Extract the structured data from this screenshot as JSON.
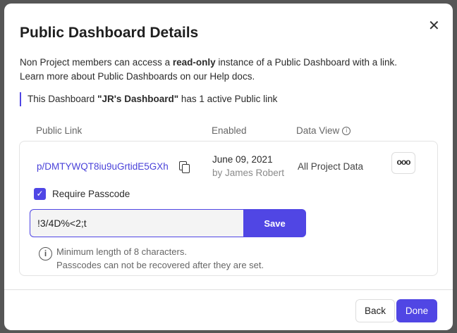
{
  "dialog": {
    "title": "Public Dashboard Details",
    "close_icon": "close-icon"
  },
  "intro": {
    "part1": "Non Project members can access a ",
    "bold": "read-only",
    "part2": " instance of a Public Dashboard with a link.",
    "line2": "Learn more about Public Dashboards on our Help docs."
  },
  "note": {
    "part1": "This Dashboard ",
    "name": "\"JR's Dashboard\"",
    "part2": " has 1 active Public link"
  },
  "table": {
    "headers": {
      "link": "Public Link",
      "enabled": "Enabled",
      "data_view": "Data View"
    },
    "row": {
      "link": "p/DMTYWQT8iu9uGrtidE5GXh",
      "date": "June 09, 2021",
      "by": "by James Robert",
      "data_view": "All Project Data",
      "more": "ooo"
    }
  },
  "passcode": {
    "checkbox_label": "Require Passcode",
    "checked": true,
    "value": "!3/4D%<2;t",
    "save": "Save",
    "hint1": "Minimum length of 8 characters.",
    "hint2": "Passcodes can not be recovered after they are set."
  },
  "footer": {
    "back": "Back",
    "done": "Done"
  },
  "colors": {
    "accent": "#5046e4"
  }
}
